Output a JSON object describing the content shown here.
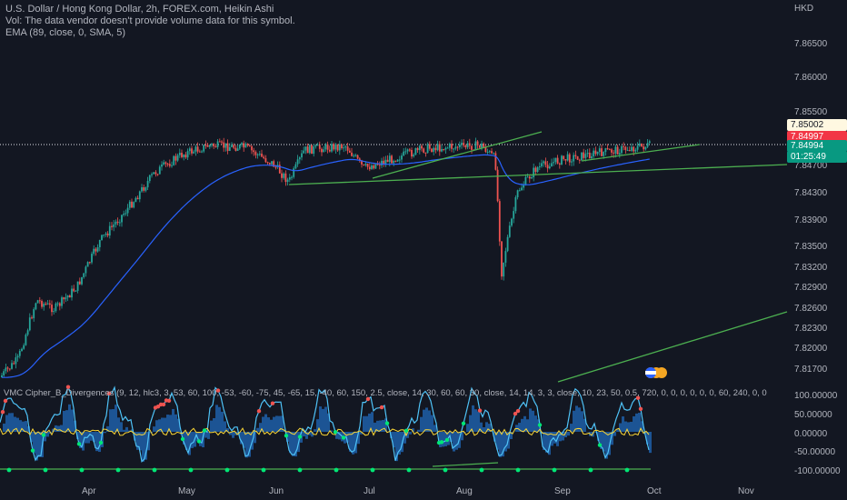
{
  "legend": {
    "title": "U.S. Dollar / Hong Kong Dollar, 2h, FOREX.com, Heikin Ashi",
    "volume_note": "Vol: The data vendor doesn't provide volume data for this symbol.",
    "ema": "EMA (89, close, 0, SMA, 5)"
  },
  "currency": "HKD",
  "price_axis": [
    "7.86500",
    "7.86000",
    "7.85500",
    "7.84700",
    "7.84300",
    "7.83900",
    "7.83500",
    "7.83200",
    "7.82900",
    "7.82600",
    "7.82300",
    "7.82000",
    "7.81700"
  ],
  "price_tags": {
    "cream": "7.85002",
    "red": "7.84997",
    "green": "7.84994",
    "countdown": "01:25:49"
  },
  "indicator": {
    "label": "VMC Cipher_B_Divergences (9, 12, hlc3, 3, 53, 60, 100, -53, -60, -75, 45, -65, 15, -40, 60, 150, 2.5, close, 14, 30, 60, 60, 30, close, 14, 14, 3, 3, close, 10, 23, 50, 0.5, 720, 0, 0, 0, 0, 0, 0, 60, 240, 0, 0",
    "axis": [
      "100.00000",
      "50.00000",
      "0.00000",
      "-50.00000",
      "-100.00000"
    ]
  },
  "time_axis": [
    "Apr",
    "May",
    "Jun",
    "Jul",
    "Aug",
    "Sep",
    "Oct",
    "Nov"
  ],
  "colors": {
    "background": "#131722",
    "bull": "#26a69a",
    "bear": "#ef5350",
    "ema": "#2962ff",
    "trendline": "#4caf50"
  }
}
